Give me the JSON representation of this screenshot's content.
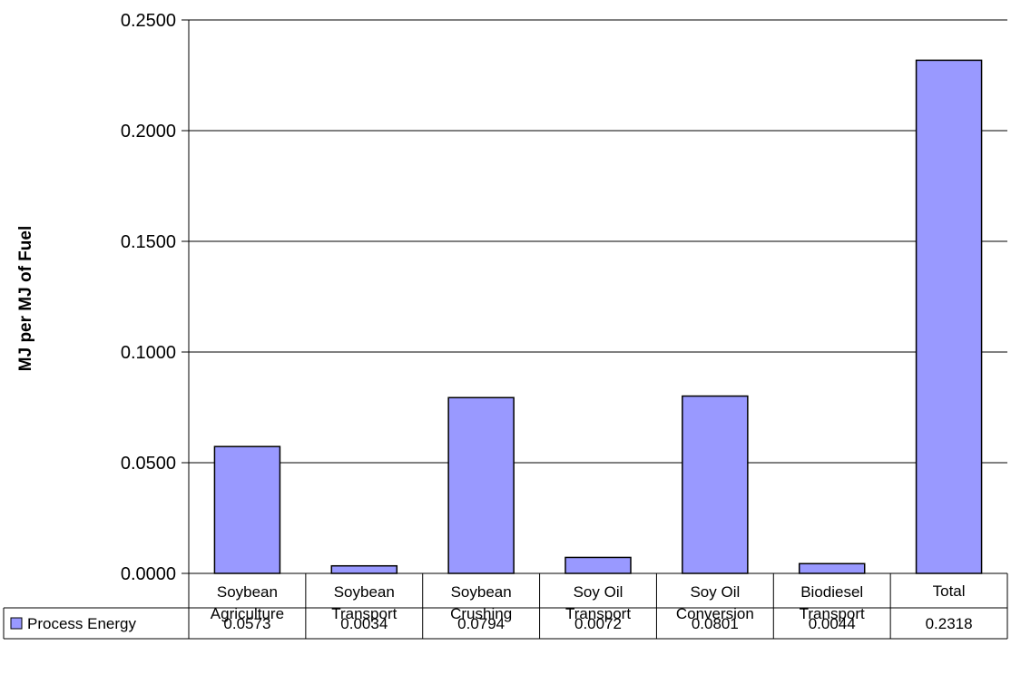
{
  "chart_data": {
    "type": "bar",
    "title": "",
    "xlabel": "",
    "ylabel": "MJ per MJ of Fuel",
    "ylim": [
      0,
      0.25
    ],
    "yticks": [
      "0.0000",
      "0.0500",
      "0.1000",
      "0.1500",
      "0.2000",
      "0.2500"
    ],
    "grid": true,
    "categories": [
      [
        "Soybean",
        "Agriculture"
      ],
      [
        "Soybean",
        "Transport"
      ],
      [
        "Soybean",
        "Crushing"
      ],
      [
        "Soy Oil",
        "Transport"
      ],
      [
        "Soy Oil",
        "Conversion"
      ],
      [
        "Biodiesel",
        "Transport"
      ],
      [
        "Total"
      ]
    ],
    "series": [
      {
        "name": "Process Energy",
        "color": "#9999ff",
        "values": [
          0.0573,
          0.0034,
          0.0794,
          0.0072,
          0.0801,
          0.0044,
          0.2318
        ],
        "value_labels": [
          "0.0573",
          "0.0034",
          "0.0794",
          "0.0072",
          "0.0801",
          "0.0044",
          "0.2318"
        ]
      }
    ],
    "legend": "data-table"
  }
}
